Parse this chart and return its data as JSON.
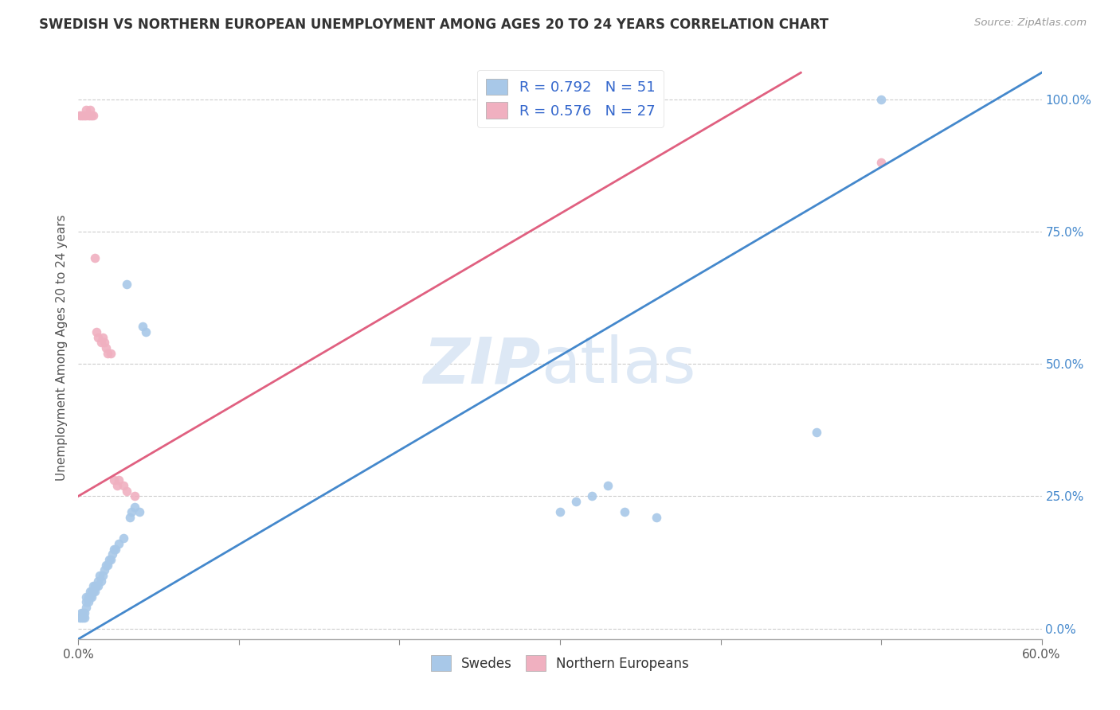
{
  "title": "SWEDISH VS NORTHERN EUROPEAN UNEMPLOYMENT AMONG AGES 20 TO 24 YEARS CORRELATION CHART",
  "source": "Source: ZipAtlas.com",
  "ylabel": "Unemployment Among Ages 20 to 24 years",
  "xlim": [
    0.0,
    0.6
  ],
  "ylim": [
    -0.02,
    1.08
  ],
  "y_ticks_right": [
    0.0,
    0.25,
    0.5,
    0.75,
    1.0
  ],
  "y_tick_labels_right": [
    "0.0%",
    "25.0%",
    "50.0%",
    "75.0%",
    "100.0%"
  ],
  "swedes_R": 0.792,
  "swedes_N": 51,
  "northern_R": 0.576,
  "northern_N": 27,
  "blue_color": "#a8c8e8",
  "pink_color": "#f0b0c0",
  "blue_line_color": "#4488cc",
  "pink_line_color": "#e06080",
  "legend_text_color": "#3366cc",
  "background_color": "#ffffff",
  "watermark_color": "#dde8f5",
  "blue_line_x0": 0.0,
  "blue_line_y0": -0.02,
  "blue_line_x1": 0.6,
  "blue_line_y1": 1.05,
  "pink_line_x0": 0.0,
  "pink_line_y0": 0.25,
  "pink_line_x1": 0.45,
  "pink_line_y1": 1.05,
  "swedes_x": [
    0.001,
    0.002,
    0.002,
    0.003,
    0.003,
    0.004,
    0.004,
    0.005,
    0.005,
    0.005,
    0.006,
    0.006,
    0.007,
    0.007,
    0.008,
    0.008,
    0.009,
    0.009,
    0.01,
    0.01,
    0.011,
    0.012,
    0.012,
    0.013,
    0.014,
    0.015,
    0.016,
    0.017,
    0.018,
    0.019,
    0.02,
    0.021,
    0.022,
    0.023,
    0.025,
    0.028,
    0.03,
    0.032,
    0.033,
    0.035,
    0.038,
    0.04,
    0.042,
    0.3,
    0.31,
    0.32,
    0.33,
    0.34,
    0.36,
    0.46,
    0.5
  ],
  "swedes_y": [
    0.02,
    0.02,
    0.03,
    0.02,
    0.03,
    0.02,
    0.03,
    0.04,
    0.05,
    0.06,
    0.05,
    0.06,
    0.06,
    0.07,
    0.06,
    0.07,
    0.07,
    0.08,
    0.07,
    0.08,
    0.08,
    0.08,
    0.09,
    0.1,
    0.09,
    0.1,
    0.11,
    0.12,
    0.12,
    0.13,
    0.13,
    0.14,
    0.15,
    0.15,
    0.16,
    0.17,
    0.65,
    0.21,
    0.22,
    0.23,
    0.22,
    0.57,
    0.56,
    0.22,
    0.24,
    0.25,
    0.27,
    0.22,
    0.21,
    0.37,
    1.0
  ],
  "northern_x": [
    0.001,
    0.002,
    0.003,
    0.004,
    0.005,
    0.005,
    0.006,
    0.007,
    0.007,
    0.008,
    0.009,
    0.01,
    0.011,
    0.012,
    0.014,
    0.015,
    0.016,
    0.017,
    0.018,
    0.02,
    0.022,
    0.024,
    0.025,
    0.028,
    0.03,
    0.035,
    0.5
  ],
  "northern_y": [
    0.97,
    0.97,
    0.97,
    0.97,
    0.97,
    0.98,
    0.97,
    0.97,
    0.98,
    0.97,
    0.97,
    0.7,
    0.56,
    0.55,
    0.54,
    0.55,
    0.54,
    0.53,
    0.52,
    0.52,
    0.28,
    0.27,
    0.28,
    0.27,
    0.26,
    0.25,
    0.88
  ]
}
